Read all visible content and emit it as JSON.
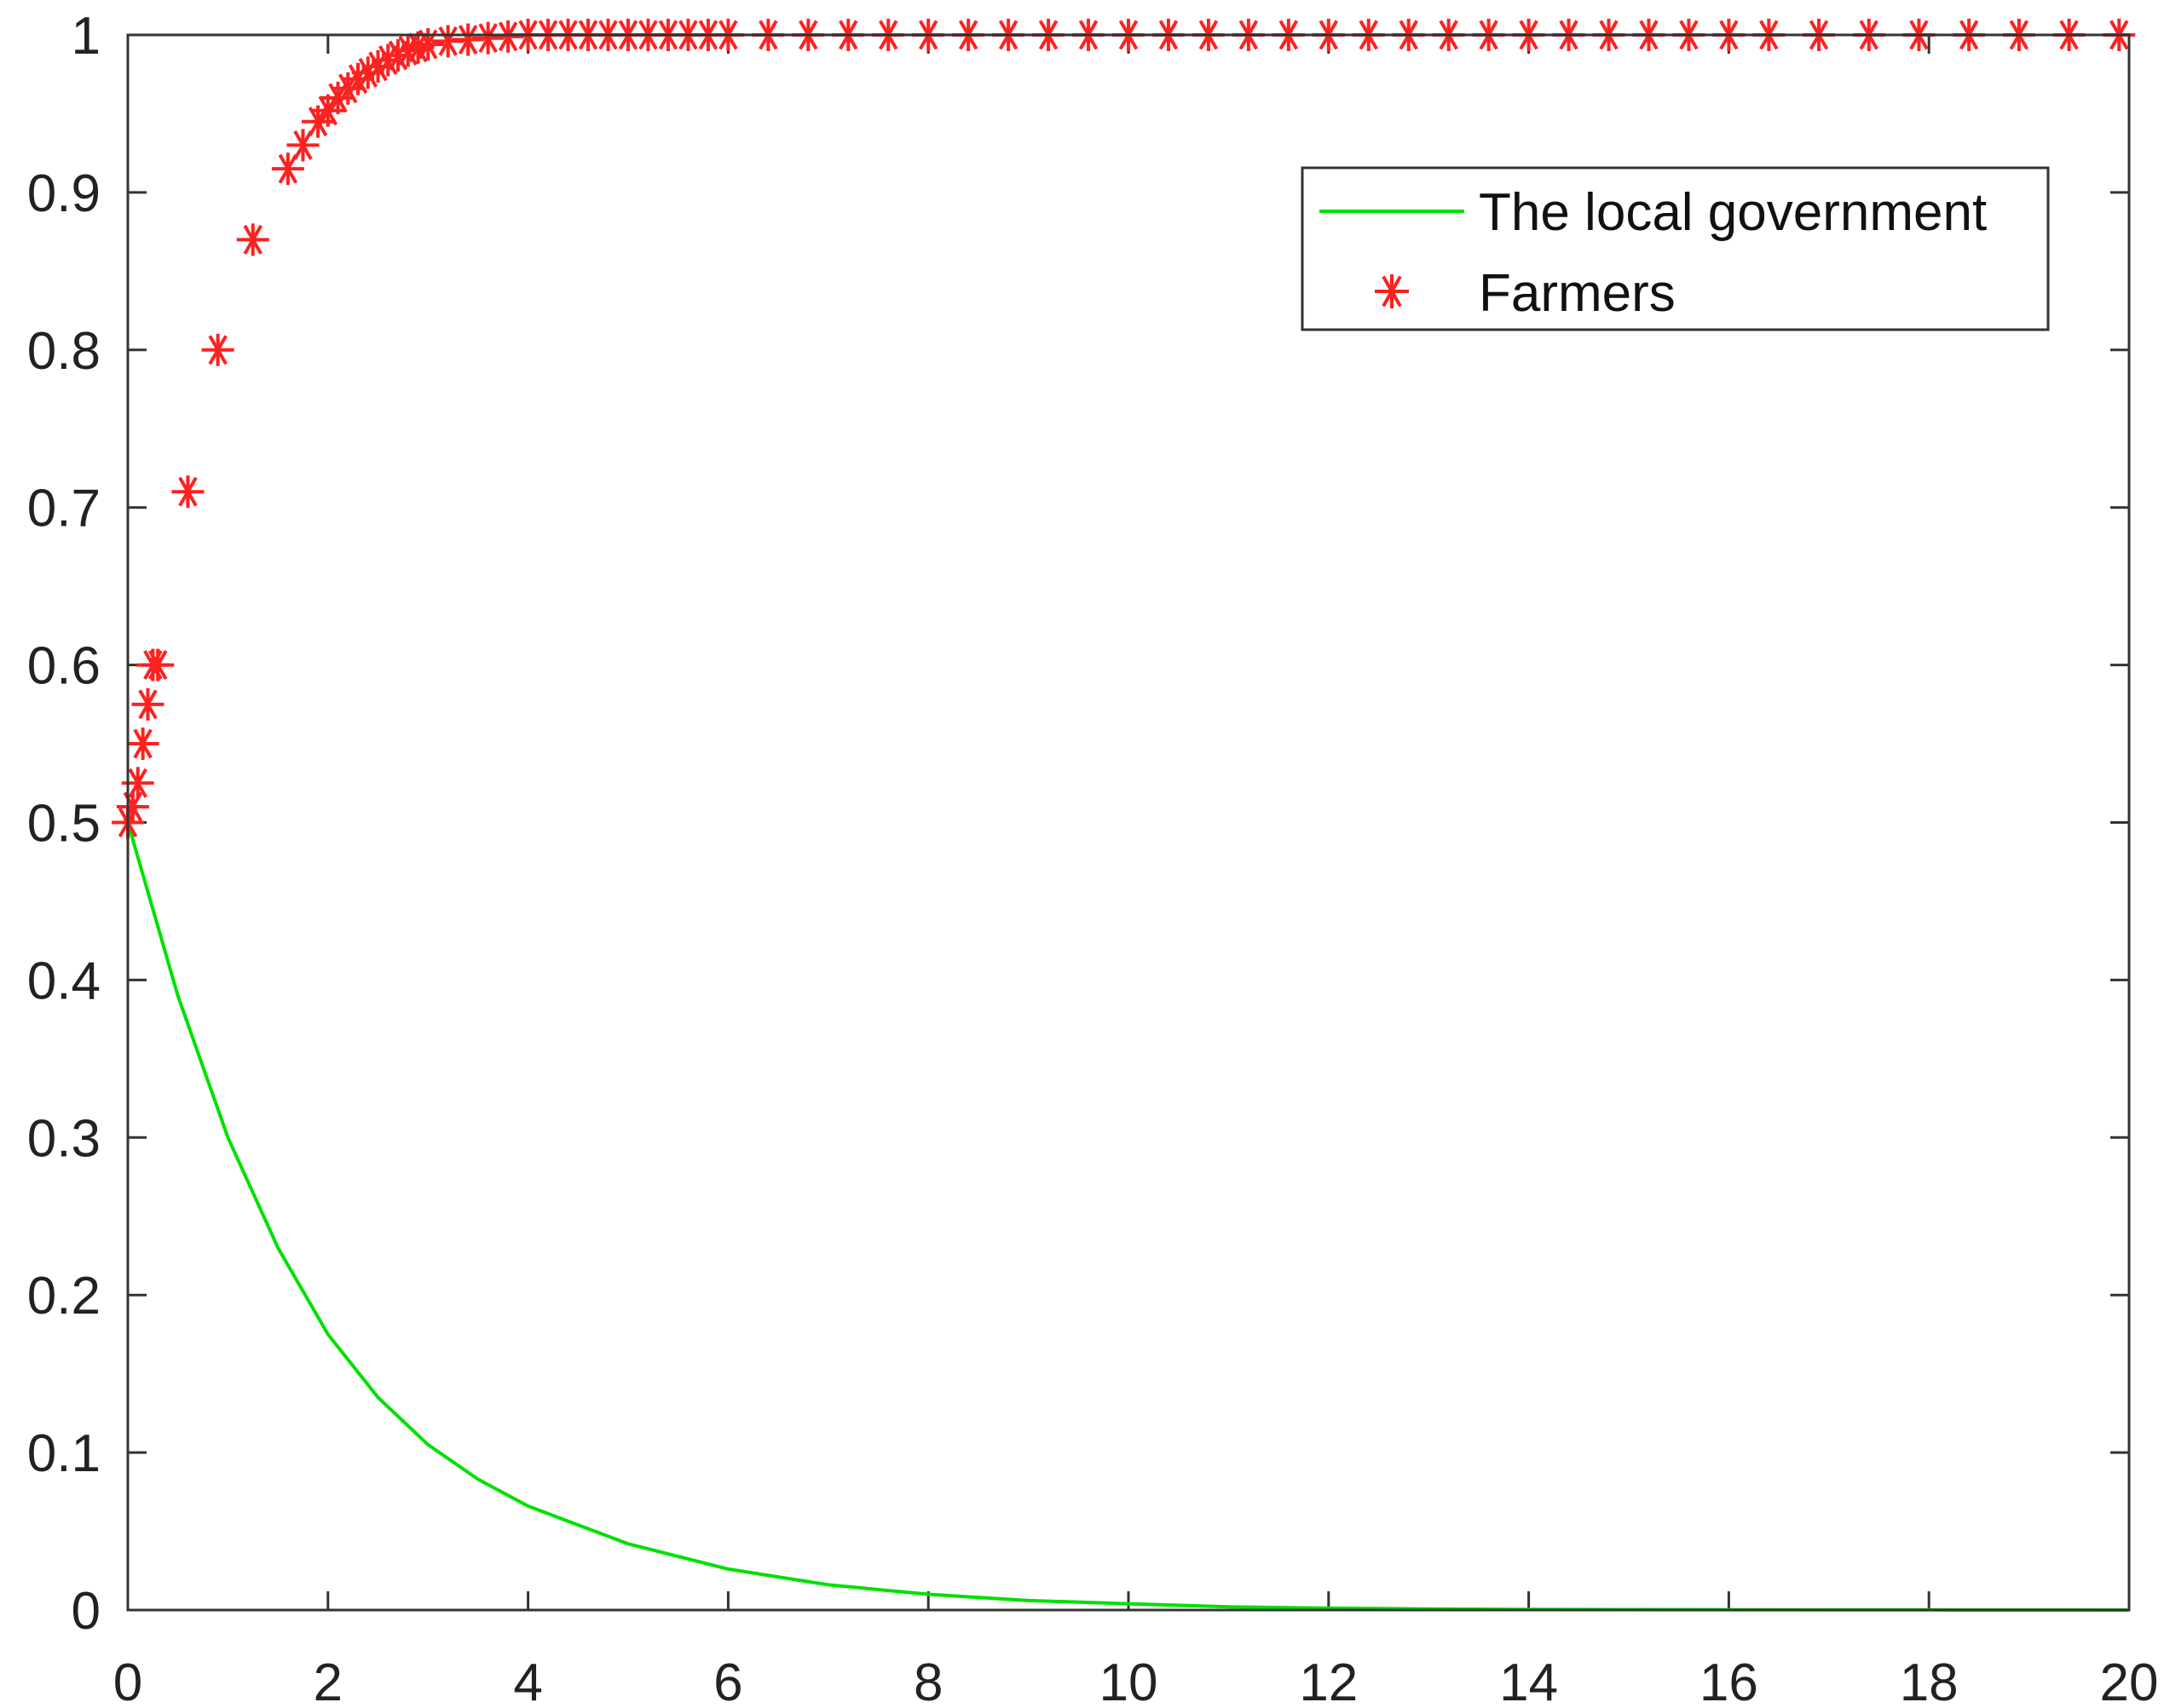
{
  "chart_data": {
    "type": "line",
    "title": "",
    "xlabel": "",
    "ylabel": "",
    "xlim": [
      0,
      20
    ],
    "ylim": [
      0,
      1
    ],
    "xticks": [
      "0",
      "2",
      "4",
      "6",
      "8",
      "10",
      "12",
      "14",
      "16",
      "18",
      "20"
    ],
    "yticks": [
      "0",
      "0.1",
      "0.2",
      "0.3",
      "0.4",
      "0.5",
      "0.6",
      "0.7",
      "0.8",
      "0.9",
      "1"
    ],
    "grid": false,
    "legend_position": "top-right",
    "series": [
      {
        "name": "The local government",
        "style": "line",
        "color": "#00e000",
        "x": [
          0,
          0.5,
          1,
          1.5,
          2,
          2.5,
          3,
          3.5,
          4,
          5,
          6,
          7,
          8,
          9,
          10,
          11,
          12,
          13,
          14,
          16,
          18,
          20
        ],
        "y": [
          0.5,
          0.39,
          0.3,
          0.23,
          0.175,
          0.135,
          0.105,
          0.083,
          0.066,
          0.042,
          0.026,
          0.016,
          0.01,
          0.006,
          0.004,
          0.002,
          0.0012,
          0.0007,
          0.0004,
          0.0002,
          0.0001,
          0.0
        ]
      },
      {
        "name": "Farmers",
        "style": "markers",
        "marker": "asterisk",
        "color": "#ff2020",
        "x": [
          0,
          0.05,
          0.1,
          0.15,
          0.2,
          0.25,
          0.3,
          0.6,
          0.9,
          1.25,
          1.6,
          1.75,
          1.9,
          2.0,
          2.1,
          2.2,
          2.3,
          2.4,
          2.5,
          2.6,
          2.7,
          2.8,
          2.9,
          3.0,
          3.2,
          3.4,
          3.6,
          3.8,
          4.0,
          4.2,
          4.4,
          4.6,
          4.8,
          5.0,
          5.2,
          5.4,
          5.6,
          5.8,
          6.0,
          6.4,
          6.8,
          7.2,
          7.6,
          8.0,
          8.4,
          8.8,
          9.2,
          9.6,
          10.0,
          10.4,
          10.8,
          11.2,
          11.6,
          12.0,
          12.4,
          12.8,
          13.2,
          13.6,
          14.0,
          14.4,
          14.8,
          15.2,
          15.6,
          16.0,
          16.4,
          16.9,
          17.4,
          17.9,
          18.4,
          18.9,
          19.4,
          19.9
        ],
        "y": [
          0.5,
          0.51,
          0.525,
          0.55,
          0.575,
          0.6,
          0.6,
          0.71,
          0.8,
          0.87,
          0.915,
          0.93,
          0.945,
          0.952,
          0.96,
          0.966,
          0.972,
          0.976,
          0.98,
          0.984,
          0.987,
          0.99,
          0.992,
          0.994,
          0.996,
          0.997,
          0.998,
          0.999,
          1,
          1,
          1,
          1,
          1,
          1,
          1,
          1,
          1,
          1,
          1,
          1,
          1,
          1,
          1,
          1,
          1,
          1,
          1,
          1,
          1,
          1,
          1,
          1,
          1,
          1,
          1,
          1,
          1,
          1,
          1,
          1,
          1,
          1,
          1,
          1,
          1,
          1,
          1,
          1,
          1,
          1,
          1,
          1
        ]
      }
    ]
  }
}
